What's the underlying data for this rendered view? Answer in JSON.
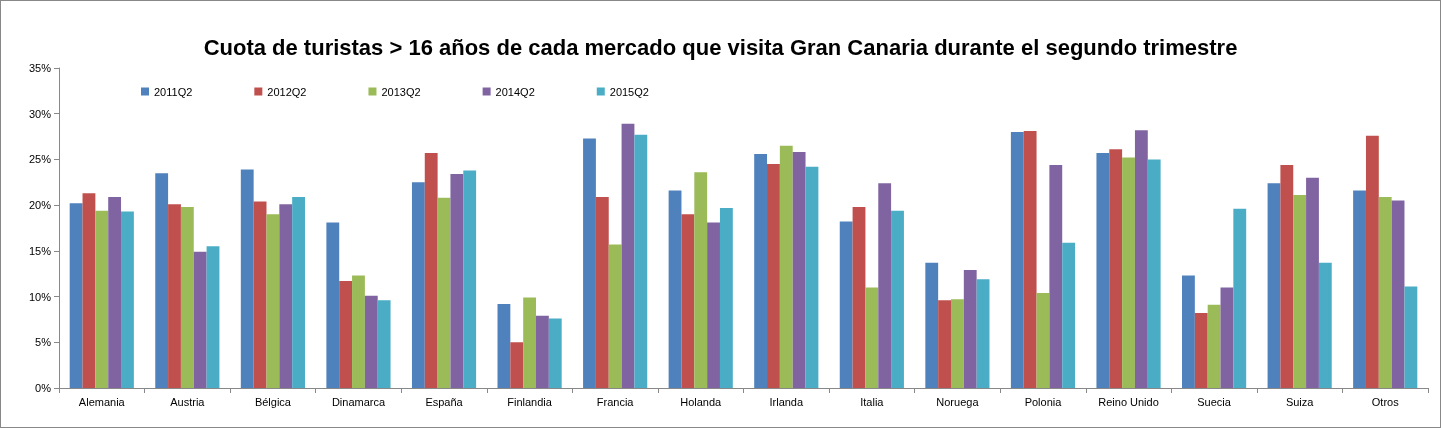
{
  "chart_data": {
    "type": "bar",
    "title": "Cuota de turistas > 16 años de cada mercado que visita Gran Canaria durante el segundo trimestre",
    "categories": [
      "Alemania",
      "Austria",
      "Bélgica",
      "Dinamarca",
      "España",
      "Finlandia",
      "Francia",
      "Holanda",
      "Irlanda",
      "Italia",
      "Noruega",
      "Polonia",
      "Reino Unido",
      "Suecia",
      "Suiza",
      "Otros"
    ],
    "series": [
      {
        "name": "2011Q2",
        "color": "#4f81bd",
        "values": [
          20.2,
          23.5,
          23.9,
          18.1,
          22.5,
          9.2,
          27.3,
          21.6,
          25.6,
          18.2,
          13.7,
          28.0,
          25.7,
          12.3,
          22.4,
          21.6
        ]
      },
      {
        "name": "2012Q2",
        "color": "#c0504d",
        "values": [
          21.3,
          20.1,
          20.4,
          11.7,
          25.7,
          5.0,
          20.9,
          19.0,
          24.5,
          19.8,
          9.6,
          28.1,
          26.1,
          8.2,
          24.4,
          27.6
        ]
      },
      {
        "name": "2013Q2",
        "color": "#9bbb59",
        "values": [
          19.4,
          19.8,
          19.0,
          12.3,
          20.8,
          9.9,
          15.7,
          23.6,
          26.5,
          11.0,
          9.7,
          10.4,
          25.2,
          9.1,
          21.1,
          20.9
        ]
      },
      {
        "name": "2014Q2",
        "color": "#8064a2",
        "values": [
          20.9,
          14.9,
          20.1,
          10.1,
          23.4,
          7.9,
          28.9,
          18.1,
          25.8,
          22.4,
          12.9,
          24.4,
          28.2,
          11.0,
          23.0,
          20.5
        ]
      },
      {
        "name": "2015Q2",
        "color": "#4bacc6",
        "values": [
          19.3,
          15.5,
          20.9,
          9.6,
          23.8,
          7.6,
          27.7,
          19.7,
          24.2,
          19.4,
          11.9,
          15.9,
          25.0,
          19.6,
          13.7,
          11.1
        ]
      }
    ],
    "ylim": [
      0,
      35
    ],
    "yticks": [
      {
        "value": 0,
        "label": "0%"
      },
      {
        "value": 5,
        "label": "5%"
      },
      {
        "value": 10,
        "label": "10%"
      },
      {
        "value": 15,
        "label": "15%"
      },
      {
        "value": 20,
        "label": "20%"
      },
      {
        "value": 25,
        "label": "25%"
      },
      {
        "value": 30,
        "label": "30%"
      },
      {
        "value": 35,
        "label": "35%"
      }
    ],
    "grid": false,
    "legend": "top left"
  }
}
